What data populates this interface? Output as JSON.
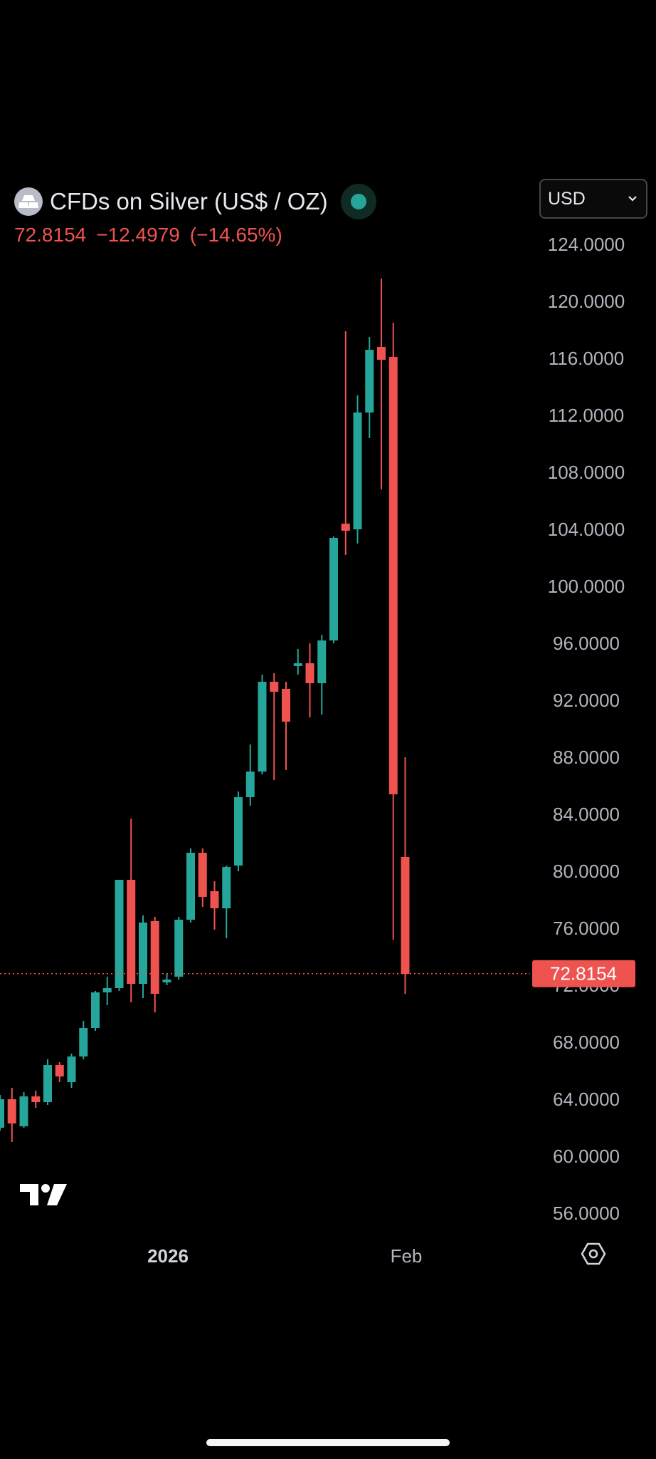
{
  "header": {
    "title": "CFDs on Silver (US$ / OZ)",
    "price": "72.8154",
    "change": "−12.4979",
    "change_pct": "(−14.65%)",
    "currency": "USD"
  },
  "colors": {
    "up": "#26a69a",
    "down": "#ef5350",
    "background": "#000000",
    "axis_text": "#b2b5be"
  },
  "icons": {
    "symbol": "silver-bars-icon",
    "status": "market-open-dot-icon",
    "logo": "tradingview-logo-icon",
    "settings": "settings-hexagon-icon",
    "dropdown": "chevron-down-icon"
  },
  "chart_data": {
    "type": "candlestick",
    "title": "CFDs on Silver (US$ / OZ)",
    "ylim": [
      54,
      126
    ],
    "y_ticks": [
      "124.0000",
      "120.0000",
      "116.0000",
      "112.0000",
      "108.0000",
      "104.0000",
      "100.0000",
      "96.0000",
      "92.0000",
      "88.0000",
      "84.0000",
      "80.0000",
      "76.0000",
      "72.0000",
      "68.0000",
      "64.0000",
      "60.0000",
      "56.0000"
    ],
    "x_labels": [
      {
        "label": "2026",
        "index": 16
      },
      {
        "label": "Feb",
        "index": 34
      }
    ],
    "last_price": 72.8154,
    "last_price_label": "72.8154",
    "candles": [
      {
        "o": 62.0,
        "h": 64.3,
        "l": 61.8,
        "c": 64.0
      },
      {
        "o": 64.0,
        "h": 64.8,
        "l": 61.0,
        "c": 62.3
      },
      {
        "o": 62.1,
        "h": 64.5,
        "l": 62.0,
        "c": 64.2
      },
      {
        "o": 64.2,
        "h": 64.6,
        "l": 63.4,
        "c": 63.8
      },
      {
        "o": 63.8,
        "h": 66.8,
        "l": 63.6,
        "c": 66.4
      },
      {
        "o": 66.4,
        "h": 66.6,
        "l": 65.2,
        "c": 65.6
      },
      {
        "o": 65.2,
        "h": 67.2,
        "l": 64.8,
        "c": 67.0
      },
      {
        "o": 67.0,
        "h": 69.5,
        "l": 66.8,
        "c": 69.0
      },
      {
        "o": 69.0,
        "h": 71.6,
        "l": 68.8,
        "c": 71.5
      },
      {
        "o": 71.5,
        "h": 72.6,
        "l": 70.6,
        "c": 71.8
      },
      {
        "o": 71.8,
        "h": 79.4,
        "l": 71.6,
        "c": 79.4
      },
      {
        "o": 79.4,
        "h": 83.7,
        "l": 70.8,
        "c": 72.1
      },
      {
        "o": 72.1,
        "h": 76.9,
        "l": 71.1,
        "c": 76.4
      },
      {
        "o": 76.5,
        "h": 76.8,
        "l": 70.1,
        "c": 71.4
      },
      {
        "o": 72.2,
        "h": 72.8,
        "l": 72.0,
        "c": 72.4
      },
      {
        "o": 72.6,
        "h": 76.8,
        "l": 72.4,
        "c": 76.6
      },
      {
        "o": 76.6,
        "h": 81.6,
        "l": 76.4,
        "c": 81.3
      },
      {
        "o": 81.3,
        "h": 81.6,
        "l": 77.5,
        "c": 78.2
      },
      {
        "o": 78.6,
        "h": 79.3,
        "l": 75.9,
        "c": 77.4
      },
      {
        "o": 77.4,
        "h": 80.4,
        "l": 75.3,
        "c": 80.3
      },
      {
        "o": 80.4,
        "h": 85.6,
        "l": 80.0,
        "c": 85.2
      },
      {
        "o": 85.2,
        "h": 88.9,
        "l": 84.6,
        "c": 87.0
      },
      {
        "o": 87.0,
        "h": 93.8,
        "l": 86.8,
        "c": 93.3
      },
      {
        "o": 93.3,
        "h": 93.9,
        "l": 86.4,
        "c": 92.6
      },
      {
        "o": 92.8,
        "h": 93.3,
        "l": 87.1,
        "c": 90.5
      },
      {
        "o": 94.4,
        "h": 95.6,
        "l": 93.8,
        "c": 94.6
      },
      {
        "o": 94.6,
        "h": 96.0,
        "l": 90.8,
        "c": 93.2
      },
      {
        "o": 93.2,
        "h": 96.6,
        "l": 91.0,
        "c": 96.2
      },
      {
        "o": 96.2,
        "h": 103.5,
        "l": 96.0,
        "c": 103.4
      },
      {
        "o": 104.4,
        "h": 117.9,
        "l": 102.2,
        "c": 103.9
      },
      {
        "o": 104.0,
        "h": 113.4,
        "l": 103.0,
        "c": 112.2
      },
      {
        "o": 112.2,
        "h": 117.5,
        "l": 110.4,
        "c": 116.6
      },
      {
        "o": 116.8,
        "h": 121.6,
        "l": 106.8,
        "c": 115.9
      },
      {
        "o": 116.1,
        "h": 118.5,
        "l": 75.2,
        "c": 85.4
      },
      {
        "o": 81.0,
        "h": 88.0,
        "l": 71.4,
        "c": 72.8
      }
    ]
  }
}
